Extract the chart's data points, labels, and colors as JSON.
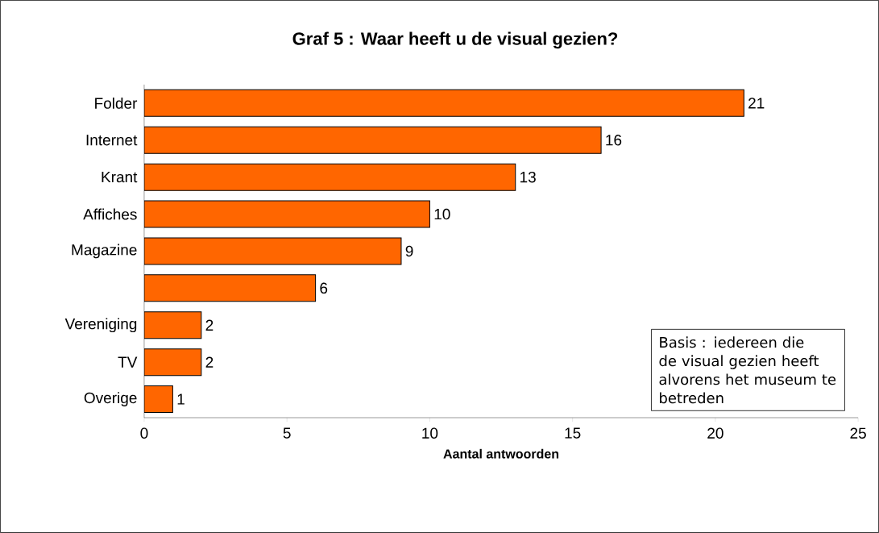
{
  "chart_data": {
    "type": "bar",
    "orientation": "horizontal",
    "title": "Graf 5 : Waar heeft u de visual gezien?",
    "xlabel": "Aantal antwoorden",
    "categories": [
      "Folder",
      "Internet",
      "Krant",
      "Affiches",
      "Magazine",
      null,
      "Vereniging",
      "TV",
      "Overige"
    ],
    "values": [
      21,
      16,
      13,
      10,
      9,
      6,
      2,
      2,
      1
    ],
    "color": "#ff6600",
    "data_labels": true,
    "xlim": [
      0,
      25
    ],
    "xticks": [
      0,
      5,
      10,
      15,
      20,
      25
    ],
    "grid": false,
    "annotations": [
      "Basis : iedereen die de visual gezien heeft alvorens het museum te betreden"
    ]
  }
}
